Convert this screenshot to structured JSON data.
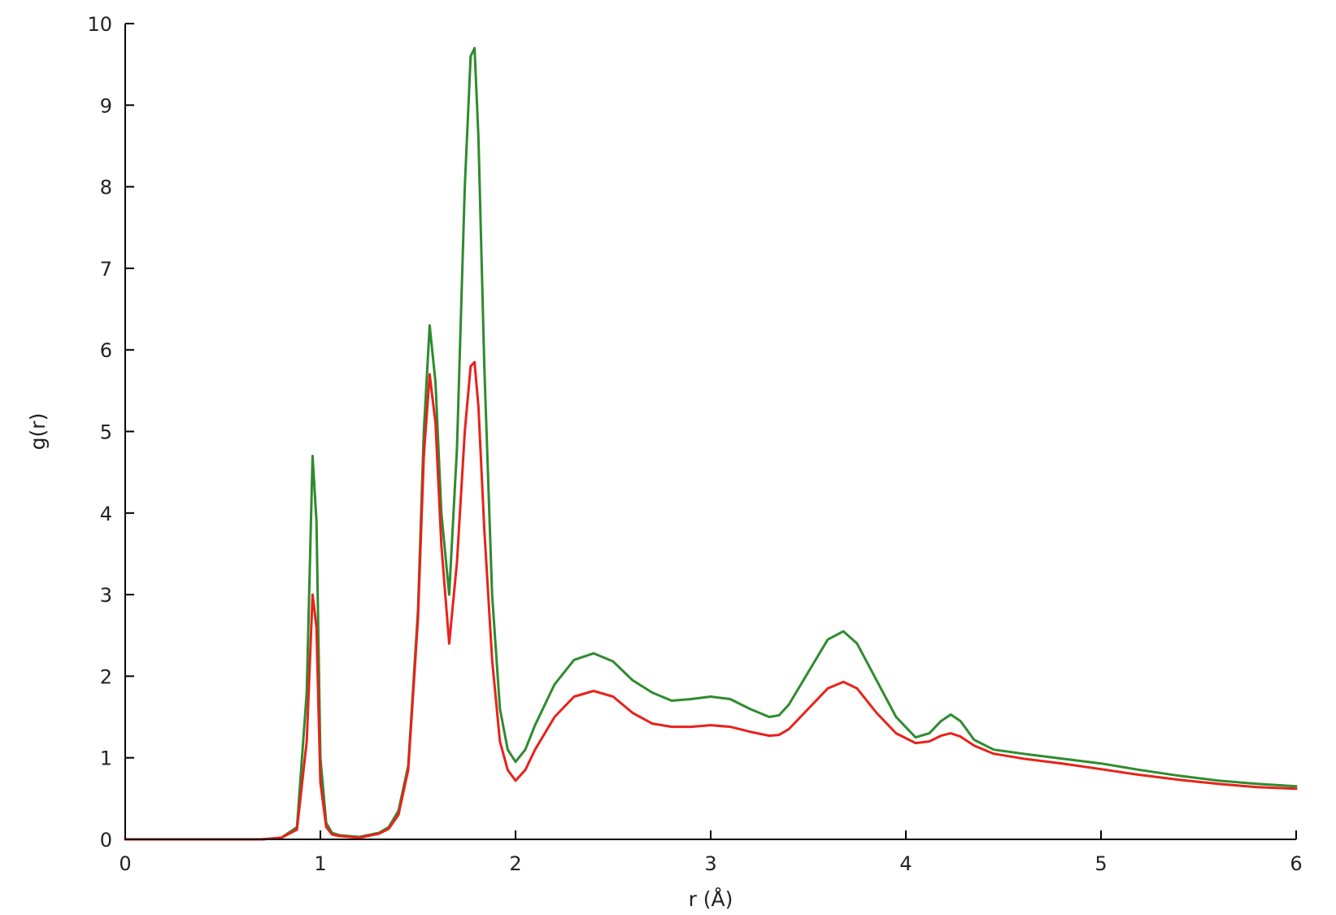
{
  "chart_data": {
    "type": "line",
    "title": "",
    "xlabel": "r (Å)",
    "ylabel": "g(r)",
    "xlim": [
      0,
      6
    ],
    "ylim": [
      0,
      10
    ],
    "xticks": [
      "0",
      "1",
      "2",
      "3",
      "4",
      "5",
      "6"
    ],
    "yticks": [
      "0",
      "1",
      "2",
      "3",
      "4",
      "5",
      "6",
      "7",
      "8",
      "9",
      "10"
    ],
    "grid": false,
    "legend": "none",
    "series": [
      {
        "color": "#2e8b2e",
        "x": [
          0,
          0.5,
          0.7,
          0.8,
          0.88,
          0.93,
          0.96,
          0.98,
          1.0,
          1.03,
          1.06,
          1.1,
          1.2,
          1.3,
          1.35,
          1.4,
          1.45,
          1.5,
          1.53,
          1.56,
          1.59,
          1.62,
          1.66,
          1.7,
          1.74,
          1.77,
          1.79,
          1.81,
          1.84,
          1.88,
          1.92,
          1.96,
          2.0,
          2.05,
          2.1,
          2.2,
          2.3,
          2.4,
          2.5,
          2.6,
          2.7,
          2.8,
          2.9,
          3.0,
          3.1,
          3.2,
          3.3,
          3.35,
          3.4,
          3.5,
          3.6,
          3.68,
          3.75,
          3.85,
          3.95,
          4.05,
          4.12,
          4.18,
          4.23,
          4.28,
          4.35,
          4.45,
          4.6,
          4.8,
          5.0,
          5.2,
          5.4,
          5.6,
          5.8,
          6.0
        ],
        "y": [
          0,
          0,
          0,
          0.02,
          0.15,
          1.8,
          4.7,
          3.9,
          1.0,
          0.2,
          0.08,
          0.05,
          0.03,
          0.08,
          0.15,
          0.35,
          0.9,
          2.8,
          5.0,
          6.3,
          5.6,
          4.0,
          3.0,
          4.8,
          8.0,
          9.6,
          9.7,
          8.6,
          5.8,
          3.0,
          1.6,
          1.1,
          0.95,
          1.1,
          1.4,
          1.9,
          2.2,
          2.28,
          2.18,
          1.95,
          1.8,
          1.7,
          1.72,
          1.75,
          1.72,
          1.6,
          1.5,
          1.52,
          1.65,
          2.05,
          2.45,
          2.55,
          2.4,
          1.95,
          1.5,
          1.25,
          1.3,
          1.45,
          1.53,
          1.45,
          1.22,
          1.1,
          1.05,
          0.99,
          0.93,
          0.85,
          0.78,
          0.72,
          0.68,
          0.65
        ]
      },
      {
        "color": "#e8221b",
        "x": [
          0,
          0.5,
          0.7,
          0.8,
          0.88,
          0.93,
          0.96,
          0.98,
          1.0,
          1.03,
          1.06,
          1.1,
          1.2,
          1.3,
          1.35,
          1.4,
          1.45,
          1.5,
          1.53,
          1.56,
          1.59,
          1.62,
          1.66,
          1.7,
          1.74,
          1.77,
          1.79,
          1.81,
          1.84,
          1.88,
          1.92,
          1.96,
          2.0,
          2.05,
          2.1,
          2.2,
          2.3,
          2.4,
          2.5,
          2.6,
          2.7,
          2.8,
          2.9,
          3.0,
          3.1,
          3.2,
          3.3,
          3.35,
          3.4,
          3.5,
          3.6,
          3.68,
          3.75,
          3.85,
          3.95,
          4.05,
          4.12,
          4.18,
          4.23,
          4.28,
          4.35,
          4.45,
          4.6,
          4.8,
          5.0,
          5.2,
          5.4,
          5.6,
          5.8,
          6.0
        ],
        "y": [
          0,
          0,
          0,
          0.02,
          0.12,
          1.2,
          3.0,
          2.6,
          0.7,
          0.15,
          0.06,
          0.04,
          0.02,
          0.07,
          0.13,
          0.3,
          0.85,
          2.7,
          4.7,
          5.7,
          5.1,
          3.6,
          2.4,
          3.4,
          5.0,
          5.8,
          5.85,
          5.3,
          3.8,
          2.2,
          1.2,
          0.85,
          0.72,
          0.85,
          1.1,
          1.5,
          1.75,
          1.82,
          1.75,
          1.55,
          1.42,
          1.38,
          1.38,
          1.4,
          1.38,
          1.32,
          1.27,
          1.28,
          1.35,
          1.6,
          1.85,
          1.93,
          1.85,
          1.55,
          1.3,
          1.18,
          1.2,
          1.27,
          1.3,
          1.26,
          1.15,
          1.05,
          0.99,
          0.93,
          0.86,
          0.79,
          0.73,
          0.68,
          0.64,
          0.62
        ]
      }
    ]
  }
}
